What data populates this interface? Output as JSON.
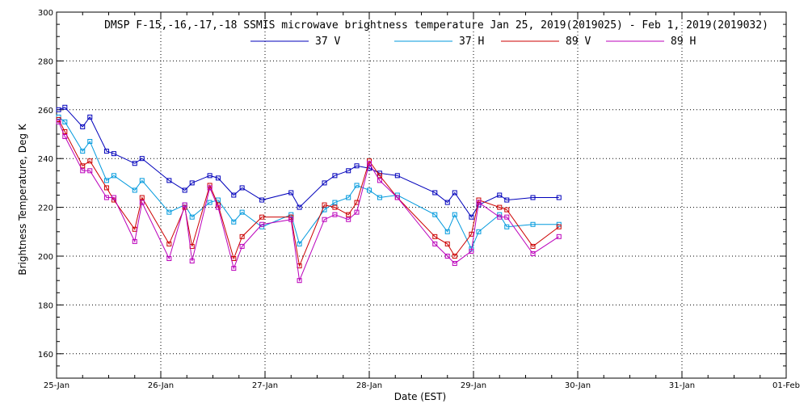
{
  "chart_data": {
    "type": "line",
    "title": "DMSP F-15,-16,-17,-18 SSMIS microwave brightness temperature Jan 25, 2019(2019025) - Feb  1, 2019(2019032)",
    "xlabel": "Date (EST)",
    "ylabel": "Brightness Temperature, Deg K",
    "xlim": [
      0,
      7
    ],
    "ylim": [
      150,
      300
    ],
    "x_ticks": [
      {
        "value": 0,
        "label": "25-Jan"
      },
      {
        "value": 1,
        "label": "26-Jan"
      },
      {
        "value": 2,
        "label": "27-Jan"
      },
      {
        "value": 3,
        "label": "28-Jan"
      },
      {
        "value": 4,
        "label": "29-Jan"
      },
      {
        "value": 5,
        "label": "30-Jan"
      },
      {
        "value": 6,
        "label": "31-Jan"
      },
      {
        "value": 7,
        "label": "01-Feb"
      }
    ],
    "y_ticks": [
      160,
      180,
      200,
      220,
      240,
      260,
      280,
      300
    ],
    "grid": true,
    "legend_position": "top",
    "x": [
      0.02,
      0.08,
      0.25,
      0.32,
      0.48,
      0.55,
      0.75,
      0.82,
      1.08,
      1.23,
      1.3,
      1.47,
      1.55,
      1.7,
      1.78,
      1.97,
      2.25,
      2.33,
      2.57,
      2.67,
      2.8,
      2.88,
      3.0,
      3.1,
      3.27,
      3.63,
      3.75,
      3.82,
      3.98,
      4.05,
      4.25,
      4.32,
      4.57,
      4.82
    ],
    "series": [
      {
        "name": "37 V",
        "color": "#0000bb",
        "values": [
          260,
          261,
          253,
          257,
          243,
          242,
          238,
          240,
          231,
          227,
          230,
          233,
          232,
          225,
          228,
          223,
          226,
          220,
          230,
          233,
          235,
          237,
          236,
          234,
          233,
          226,
          222,
          226,
          216,
          221,
          225,
          223,
          224,
          224
        ]
      },
      {
        "name": "37 H",
        "color": "#0099dd",
        "values": [
          257,
          255,
          243,
          247,
          231,
          233,
          227,
          231,
          218,
          221,
          216,
          222,
          223,
          214,
          218,
          212,
          217,
          205,
          219,
          222,
          224,
          229,
          227,
          224,
          225,
          217,
          210,
          217,
          203,
          210,
          217,
          212,
          213,
          213
        ]
      },
      {
        "name": "89 V",
        "color": "#cc0000",
        "values": [
          256,
          251,
          237,
          239,
          228,
          223,
          211,
          224,
          205,
          220,
          204,
          229,
          221,
          199,
          208,
          216,
          216,
          196,
          221,
          220,
          217,
          222,
          239,
          233,
          224,
          208,
          205,
          200,
          209,
          223,
          220,
          219,
          204,
          212
        ]
      },
      {
        "name": "89 H",
        "color": "#bb00bb",
        "values": [
          255,
          249,
          235,
          235,
          224,
          224,
          206,
          222,
          199,
          221,
          198,
          228,
          220,
          195,
          204,
          213,
          215,
          190,
          215,
          217,
          215,
          218,
          238,
          231,
          224,
          205,
          200,
          197,
          202,
          222,
          216,
          216,
          201,
          208
        ]
      }
    ]
  }
}
